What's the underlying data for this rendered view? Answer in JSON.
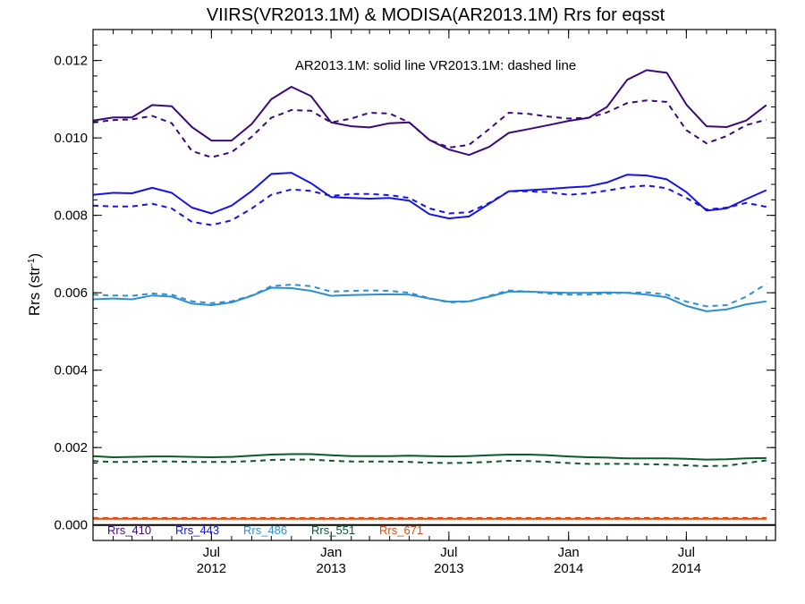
{
  "chart_data": {
    "type": "line",
    "title": "VIIRS(VR2013.1M) & MODISA(AR2013.1M)  Rrs for eqsst",
    "ylabel_main": "Rrs (str",
    "ylabel_sup": "-1",
    "ylabel_close": ")",
    "annotation": "AR2013.1M: solid line   VR2013.1M: dashed line",
    "ylim": [
      -0.0004,
      0.0128
    ],
    "yticks": [
      {
        "value": 0.0,
        "label": "0.000"
      },
      {
        "value": 0.002,
        "label": "0.002"
      },
      {
        "value": 0.004,
        "label": "0.004"
      },
      {
        "value": 0.006,
        "label": "0.006"
      },
      {
        "value": 0.008,
        "label": "0.008"
      },
      {
        "value": 0.01,
        "label": "0.010"
      },
      {
        "value": 0.012,
        "label": "0.012"
      }
    ],
    "xlim": [
      "2012-01-01",
      "2014-11-15"
    ],
    "xticks": [
      {
        "date": "2012-07-01",
        "month": "Jul",
        "year": "2012"
      },
      {
        "date": "2013-01-01",
        "month": "Jan",
        "year": "2013"
      },
      {
        "date": "2013-07-01",
        "month": "Jul",
        "year": "2013"
      },
      {
        "date": "2014-01-01",
        "month": "Jan",
        "year": "2014"
      },
      {
        "date": "2014-07-01",
        "month": "Jul",
        "year": "2014"
      }
    ],
    "x": [
      "2012-01-01",
      "2012-02-01",
      "2012-03-01",
      "2012-04-01",
      "2012-05-01",
      "2012-06-01",
      "2012-07-01",
      "2012-08-01",
      "2012-09-01",
      "2012-10-01",
      "2012-11-01",
      "2012-12-01",
      "2013-01-01",
      "2013-02-01",
      "2013-03-01",
      "2013-04-01",
      "2013-05-01",
      "2013-06-01",
      "2013-07-01",
      "2013-08-01",
      "2013-09-01",
      "2013-10-01",
      "2013-11-01",
      "2013-12-01",
      "2014-01-01",
      "2014-02-01",
      "2014-03-01",
      "2014-04-01",
      "2014-05-01",
      "2014-06-01",
      "2014-07-01",
      "2014-08-01",
      "2014-09-01",
      "2014-10-01",
      "2014-11-01"
    ],
    "series": [
      {
        "name": "Rrs_410",
        "color": "#3c0a78",
        "style": "solid",
        "values": [
          0.01045,
          0.01053,
          0.01053,
          0.01085,
          0.01082,
          0.01028,
          0.00993,
          0.00993,
          0.01036,
          0.011,
          0.01132,
          0.01108,
          0.0104,
          0.0103,
          0.01027,
          0.01038,
          0.0104,
          0.00995,
          0.0097,
          0.00956,
          0.00977,
          0.01013,
          0.01023,
          0.01033,
          0.01044,
          0.01052,
          0.0108,
          0.0115,
          0.01175,
          0.01168,
          0.01086,
          0.0103,
          0.01028,
          0.01045,
          0.01085
        ]
      },
      {
        "name": "Rrs_410",
        "color": "#3c0a78",
        "style": "dashed",
        "values": [
          0.0104,
          0.01046,
          0.01048,
          0.01057,
          0.01038,
          0.00966,
          0.0095,
          0.00963,
          0.01003,
          0.01052,
          0.01072,
          0.0107,
          0.0104,
          0.0105,
          0.01065,
          0.01063,
          0.0104,
          0.00995,
          0.00975,
          0.00982,
          0.01023,
          0.01065,
          0.01062,
          0.01055,
          0.0105,
          0.01052,
          0.01066,
          0.0109,
          0.01097,
          0.01093,
          0.0102,
          0.00986,
          0.01005,
          0.01033,
          0.01047
        ]
      },
      {
        "name": "Rrs_443",
        "color": "#1414e6",
        "style": "solid",
        "values": [
          0.00853,
          0.00858,
          0.00857,
          0.00871,
          0.00858,
          0.0082,
          0.00805,
          0.00825,
          0.00863,
          0.00907,
          0.0091,
          0.00883,
          0.00847,
          0.00845,
          0.00843,
          0.00845,
          0.00838,
          0.00803,
          0.00792,
          0.00797,
          0.0083,
          0.00862,
          0.00865,
          0.00868,
          0.00872,
          0.00875,
          0.00885,
          0.00905,
          0.00903,
          0.00893,
          0.0086,
          0.00812,
          0.00818,
          0.00842,
          0.00865
        ]
      },
      {
        "name": "Rrs_443",
        "color": "#1414e6",
        "style": "dashed",
        "values": [
          0.00825,
          0.00823,
          0.00823,
          0.0083,
          0.00818,
          0.00783,
          0.00775,
          0.00787,
          0.00818,
          0.00853,
          0.00867,
          0.00863,
          0.0085,
          0.00855,
          0.00855,
          0.00852,
          0.00845,
          0.00818,
          0.00805,
          0.00808,
          0.00832,
          0.00862,
          0.00862,
          0.0086,
          0.00853,
          0.00857,
          0.00864,
          0.00873,
          0.00877,
          0.0087,
          0.00845,
          0.00815,
          0.0082,
          0.00832,
          0.00822
        ]
      },
      {
        "name": "Rrs_486",
        "color": "#2f8fd0",
        "style": "solid",
        "values": [
          0.00583,
          0.00585,
          0.00583,
          0.00593,
          0.0059,
          0.00572,
          0.00568,
          0.00575,
          0.00592,
          0.00613,
          0.00612,
          0.00605,
          0.00592,
          0.00594,
          0.00595,
          0.00596,
          0.00595,
          0.00585,
          0.00577,
          0.00578,
          0.0059,
          0.00603,
          0.00603,
          0.00601,
          0.006,
          0.006,
          0.00601,
          0.006,
          0.00595,
          0.00588,
          0.00566,
          0.00552,
          0.00557,
          0.0057,
          0.00578
        ]
      },
      {
        "name": "Rrs_486",
        "color": "#2f8fd0",
        "style": "dashed",
        "values": [
          0.00595,
          0.00593,
          0.00592,
          0.00598,
          0.00595,
          0.00578,
          0.00573,
          0.00578,
          0.00593,
          0.00617,
          0.00621,
          0.00617,
          0.00603,
          0.00605,
          0.00606,
          0.00605,
          0.006,
          0.00586,
          0.00575,
          0.00577,
          0.00592,
          0.00606,
          0.00603,
          0.00598,
          0.00595,
          0.00595,
          0.00598,
          0.006,
          0.00601,
          0.00595,
          0.00577,
          0.00565,
          0.00568,
          0.0059,
          0.00623
        ]
      },
      {
        "name": "Rrs_551",
        "color": "#0a5a2a",
        "style": "solid",
        "values": [
          0.00178,
          0.00175,
          0.00176,
          0.00177,
          0.00177,
          0.00176,
          0.00175,
          0.00176,
          0.00179,
          0.00182,
          0.00183,
          0.00183,
          0.0018,
          0.00178,
          0.00178,
          0.00178,
          0.00179,
          0.00178,
          0.00177,
          0.00178,
          0.0018,
          0.00182,
          0.00182,
          0.0018,
          0.00177,
          0.00175,
          0.00174,
          0.00172,
          0.00172,
          0.00172,
          0.00171,
          0.00169,
          0.0017,
          0.00172,
          0.00173
        ]
      },
      {
        "name": "Rrs_551",
        "color": "#0a5a2a",
        "style": "dashed",
        "values": [
          0.00165,
          0.00163,
          0.00163,
          0.00164,
          0.00164,
          0.00163,
          0.00163,
          0.00163,
          0.00165,
          0.00168,
          0.00169,
          0.00169,
          0.00166,
          0.00164,
          0.00164,
          0.00164,
          0.00163,
          0.00161,
          0.0016,
          0.00161,
          0.00163,
          0.00166,
          0.00165,
          0.00163,
          0.0016,
          0.00158,
          0.00158,
          0.00158,
          0.00157,
          0.00156,
          0.00154,
          0.00152,
          0.00153,
          0.0016,
          0.00167
        ]
      },
      {
        "name": "Rrs_671",
        "color": "#e04a0a",
        "style": "solid",
        "values": [
          0.00016,
          0.00016,
          0.00016,
          0.00016,
          0.00016,
          0.00016,
          0.00016,
          0.00016,
          0.00016,
          0.00016,
          0.00016,
          0.00016,
          0.00016,
          0.00016,
          0.00016,
          0.00016,
          0.00016,
          0.00016,
          0.00016,
          0.00016,
          0.00016,
          0.00016,
          0.00016,
          0.00016,
          0.00016,
          0.00016,
          0.00016,
          0.00016,
          0.00016,
          0.00016,
          0.00016,
          0.00016,
          0.00016,
          0.00016,
          0.00016
        ]
      },
      {
        "name": "Rrs_671",
        "color": "#e04a0a",
        "style": "dashed",
        "values": [
          0.00018,
          0.00018,
          0.00018,
          0.00018,
          0.00018,
          0.00018,
          0.00018,
          0.00018,
          0.00018,
          0.00018,
          0.00018,
          0.00018,
          0.00018,
          0.00018,
          0.00018,
          0.00018,
          0.00018,
          0.00018,
          0.00018,
          0.00018,
          0.00018,
          0.00018,
          0.00018,
          0.00018,
          0.00018,
          0.00018,
          0.00018,
          0.00018,
          0.00018,
          0.00018,
          0.00018,
          0.00018,
          0.00018,
          0.00018,
          0.00018
        ]
      }
    ],
    "legend": [
      {
        "label": "Rrs_410",
        "color": "#3c0a78"
      },
      {
        "label": "Rrs_443",
        "color": "#1414e6"
      },
      {
        "label": "Rrs_486",
        "color": "#2f8fd0"
      },
      {
        "label": "Rrs_551",
        "color": "#0a5a2a"
      },
      {
        "label": "Rrs_671",
        "color": "#e04a0a"
      }
    ],
    "legend_position": "bottom-left",
    "zero_line": 0.0,
    "grid": false
  }
}
